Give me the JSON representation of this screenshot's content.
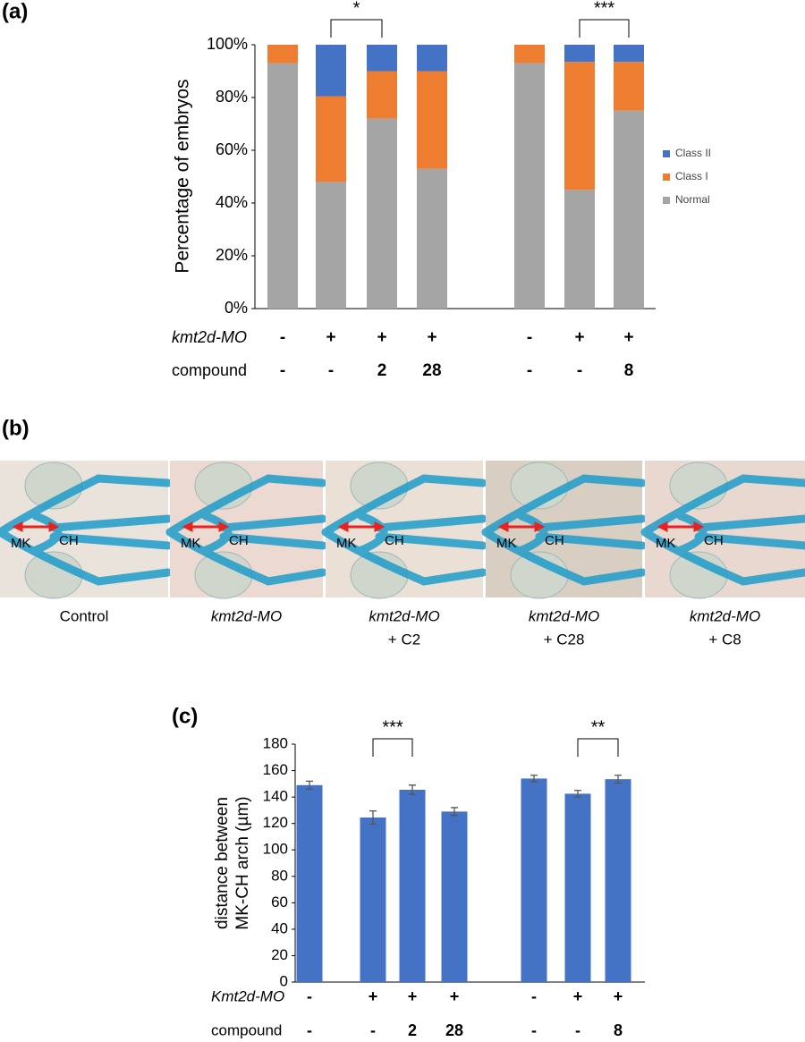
{
  "panels": [
    "(a)",
    "(b)",
    "(c)"
  ],
  "chart_data": [
    {
      "type": "stacked-bar",
      "ylabel": "Percentage of embryos",
      "ylim": [
        0,
        100
      ],
      "yticks": [
        {
          "value": 0,
          "label": "0%"
        },
        {
          "value": 20,
          "label": "20%"
        },
        {
          "value": 40,
          "label": "40%"
        },
        {
          "value": 60,
          "label": "60%"
        },
        {
          "value": 80,
          "label": "80%"
        },
        {
          "value": 100,
          "label": "100%"
        }
      ],
      "series": [
        {
          "name": "Normal",
          "color": "#a5a5a5",
          "values": [
            93,
            48,
            72,
            53,
            93,
            45,
            75
          ]
        },
        {
          "name": "Class I",
          "color": "#ed7d31",
          "values": [
            7,
            32.5,
            18,
            37,
            7,
            48.5,
            18.5
          ]
        },
        {
          "name": "Class II",
          "color": "#4472c4",
          "values": [
            0,
            19.5,
            10,
            10,
            0,
            6.5,
            6.5
          ]
        }
      ],
      "conditions": [
        {
          "label": "kmt2d-MO",
          "values": [
            "-",
            "+",
            "+",
            "+",
            "-",
            "+",
            "+"
          ]
        },
        {
          "label": "compound",
          "values": [
            "-",
            "-",
            "2",
            "28",
            "-",
            "-",
            "8"
          ]
        }
      ],
      "annotations": [
        "*",
        "***"
      ]
    },
    {
      "type": "bar",
      "ylabel": [
        "distance between",
        "MK-CH arch (µm)"
      ],
      "ylim": [
        0,
        180
      ],
      "yticks": [
        0,
        20,
        40,
        60,
        80,
        100,
        120,
        140,
        160,
        180
      ],
      "series": [
        {
          "color": "#4472c4",
          "values": [
            149,
            124.5,
            145.5,
            129,
            154,
            142.5,
            153.5
          ],
          "errors": [
            3,
            5,
            3.5,
            3,
            2.5,
            2.5,
            3
          ]
        }
      ],
      "conditions": [
        {
          "label": "Kmt2d-MO",
          "values": [
            "-",
            "+",
            "+",
            "+",
            "-",
            "+",
            "+"
          ]
        },
        {
          "label": "compound",
          "values": [
            "-",
            "-",
            "2",
            "28",
            "-",
            "-",
            "8"
          ]
        }
      ],
      "annotations": [
        "***",
        "**"
      ]
    }
  ],
  "images": [
    {
      "caption": "Control",
      "labels": [
        "MK",
        "CH"
      ]
    },
    {
      "caption": "kmt2d-MO",
      "labels": [
        "MK",
        "CH"
      ]
    },
    {
      "caption": "kmt2d-MO",
      "treatment": "+ C2",
      "labels": [
        "MK",
        "CH"
      ]
    },
    {
      "caption": "kmt2d-MO",
      "treatment": "+ C28",
      "labels": [
        "MK",
        "CH"
      ]
    },
    {
      "caption": "kmt2d-MO",
      "treatment": "+ C8",
      "labels": [
        "MK",
        "CH"
      ]
    }
  ]
}
